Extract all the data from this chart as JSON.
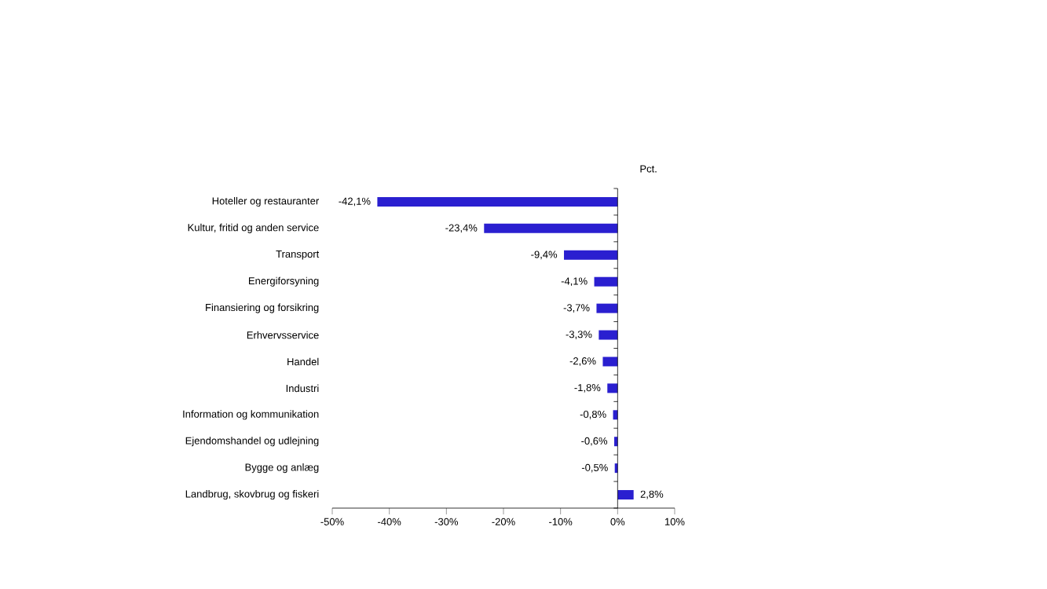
{
  "chart_data": {
    "type": "bar",
    "orientation": "horizontal",
    "categories": [
      "Hoteller og restauranter",
      "Kultur, fritid og anden service",
      "Transport",
      "Energiforsyning",
      "Finansiering og forsikring",
      "Erhvervsservice",
      "Handel",
      "Industri",
      "Information og kommunikation",
      "Ejendomshandel og udlejning",
      "Bygge og anlæg",
      "Landbrug, skovbrug og fiskeri"
    ],
    "values": [
      -42.1,
      -23.4,
      -9.4,
      -4.1,
      -3.7,
      -3.3,
      -2.6,
      -1.8,
      -0.8,
      -0.6,
      -0.5,
      2.8
    ],
    "value_labels": [
      "-42,1%",
      "-23,4%",
      "-9,4%",
      "-4,1%",
      "-3,7%",
      "-3,3%",
      "-2,6%",
      "-1,8%",
      "-0,8%",
      "-0,6%",
      "-0,5%",
      "2,8%"
    ],
    "color": "#2a1fd0",
    "xlim": [
      -50,
      10
    ],
    "xticks": [
      {
        "value": -50,
        "label": "-50%"
      },
      {
        "value": -40,
        "label": "-40%"
      },
      {
        "value": -30,
        "label": "-30%"
      },
      {
        "value": -20,
        "label": "-20%"
      },
      {
        "value": -10,
        "label": "-10%"
      },
      {
        "value": 0,
        "label": "0%"
      },
      {
        "value": 10,
        "label": "10%"
      }
    ],
    "annotations": [
      "Pct."
    ]
  }
}
